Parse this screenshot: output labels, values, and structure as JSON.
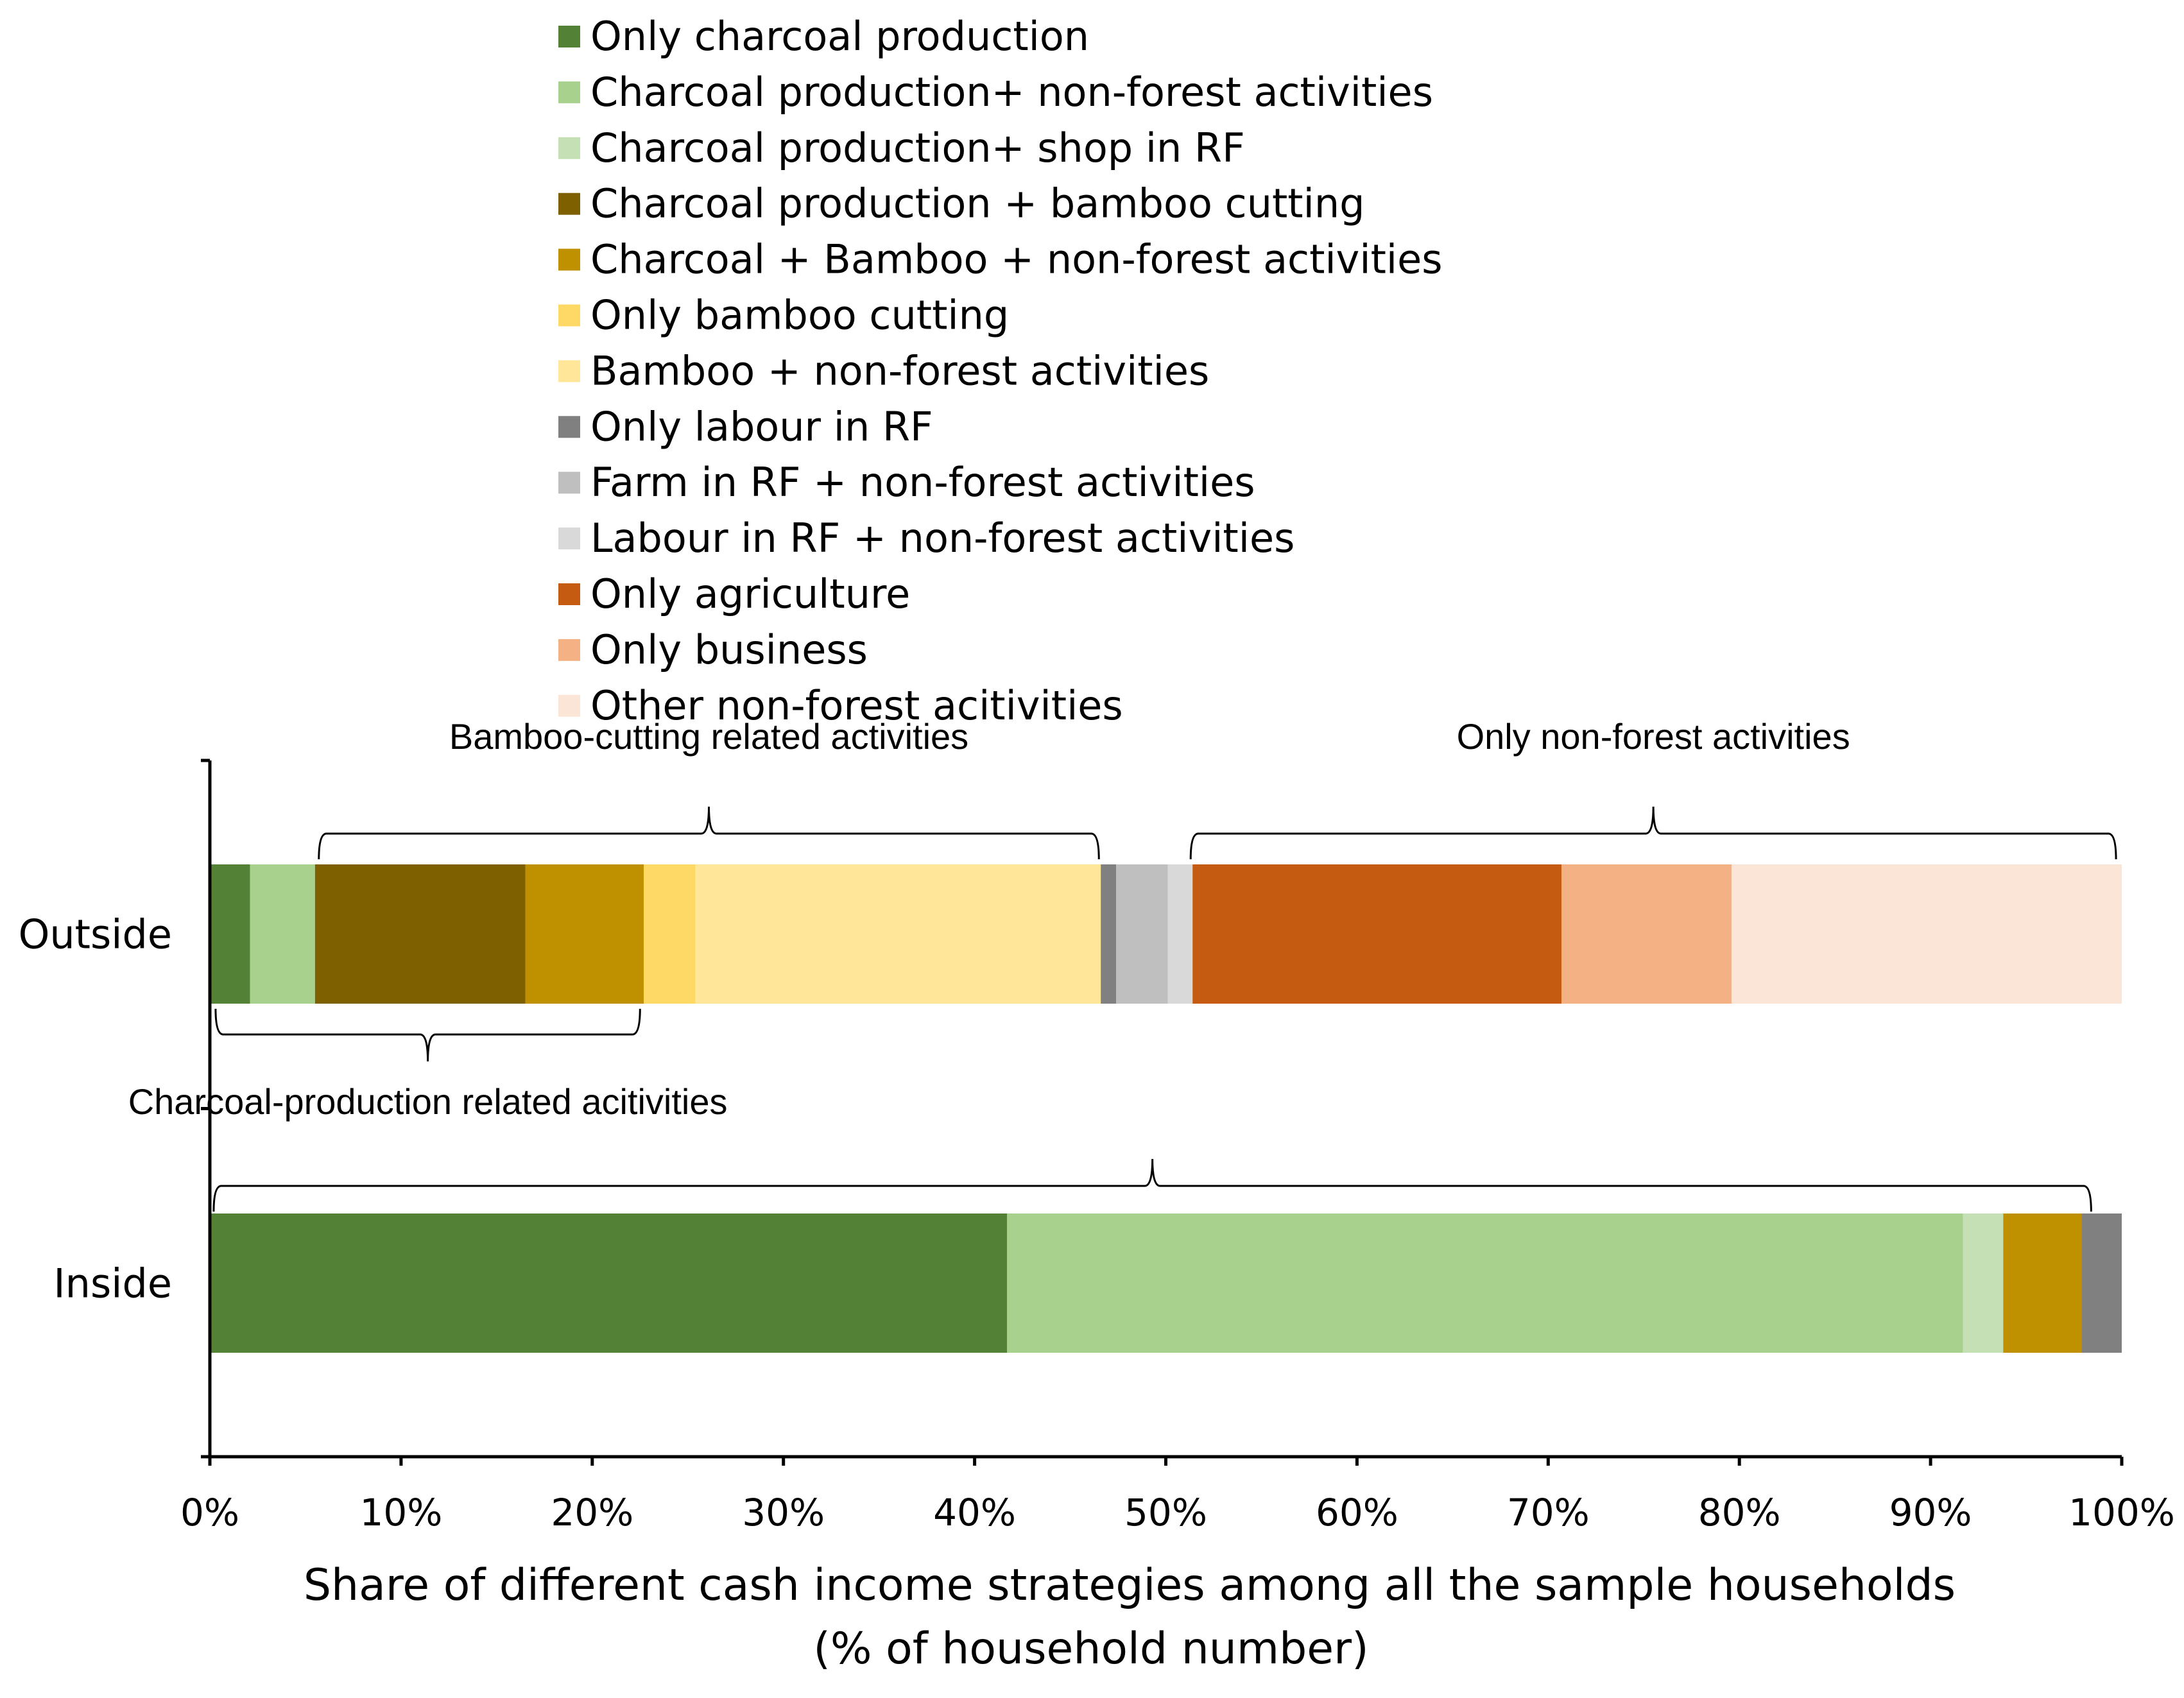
{
  "chart_data": {
    "type": "bar",
    "orientation": "horizontal",
    "stacked": true,
    "normalized_percent": true,
    "categories": [
      "Outside",
      "Inside"
    ],
    "xlabel": "Share of different cash income strategies among all the sample households",
    "xlabel_line2": "(% of household number)",
    "ylabel": "",
    "xlim": [
      0,
      100
    ],
    "x_ticks": [
      "0%",
      "10%",
      "20%",
      "30%",
      "40%",
      "50%",
      "60%",
      "70%",
      "80%",
      "90%",
      "100%"
    ],
    "grid": false,
    "legend_position": "top",
    "series": [
      {
        "name": "Only charcoal production",
        "color": "#538135",
        "values": [
          2.1,
          41.7
        ]
      },
      {
        "name": "Charcoal production+ non-forest activities",
        "color": "#A9D18E",
        "values": [
          3.4,
          50.0
        ]
      },
      {
        "name": "Charcoal production+ shop in RF",
        "color": "#C5E0B4",
        "values": [
          0,
          2.1
        ]
      },
      {
        "name": "Charcoal production + bamboo cutting",
        "color": "#7F6000",
        "values": [
          11.0,
          0
        ]
      },
      {
        "name": "Charcoal + Bamboo + non-forest activities",
        "color": "#BF9000",
        "values": [
          6.2,
          4.1
        ]
      },
      {
        "name": "Only bamboo cutting",
        "color": "#FFD966",
        "values": [
          2.7,
          0
        ]
      },
      {
        "name": "Bamboo + non-forest activities",
        "color": "#FFE699",
        "values": [
          21.2,
          0
        ]
      },
      {
        "name": "Only labour in RF",
        "color": "#808080",
        "values": [
          0.8,
          2.1
        ]
      },
      {
        "name": "Farm in RF + non-forest activities",
        "color": "#BFBFBF",
        "values": [
          2.7,
          0
        ]
      },
      {
        "name": "Labour in RF + non-forest activities",
        "color": "#D9D9D9",
        "values": [
          1.3,
          0
        ]
      },
      {
        "name": "Only agriculture",
        "color": "#C55A11",
        "values": [
          19.3,
          0
        ]
      },
      {
        "name": "Only business",
        "color": "#F4B183",
        "values": [
          8.9,
          0
        ]
      },
      {
        "name": "Other non-forest acitivities",
        "color": "#FBE5D6",
        "values": [
          20.4,
          0
        ]
      }
    ],
    "annotations": [
      {
        "label": "Bamboo-cutting related activities",
        "category": "Outside",
        "side": "above",
        "from": 5.7,
        "to": 46.5
      },
      {
        "label": "Only non-forest activities",
        "category": "Outside",
        "side": "above",
        "from": 51.3,
        "to": 99.7
      },
      {
        "label": "Charcoal-production related acitivities",
        "category": "Outside",
        "side": "below",
        "from": 0.3,
        "to": 22.5
      },
      {
        "label": "",
        "category": "Inside",
        "side": "above",
        "from": 0.2,
        "to": 98.4
      }
    ]
  }
}
